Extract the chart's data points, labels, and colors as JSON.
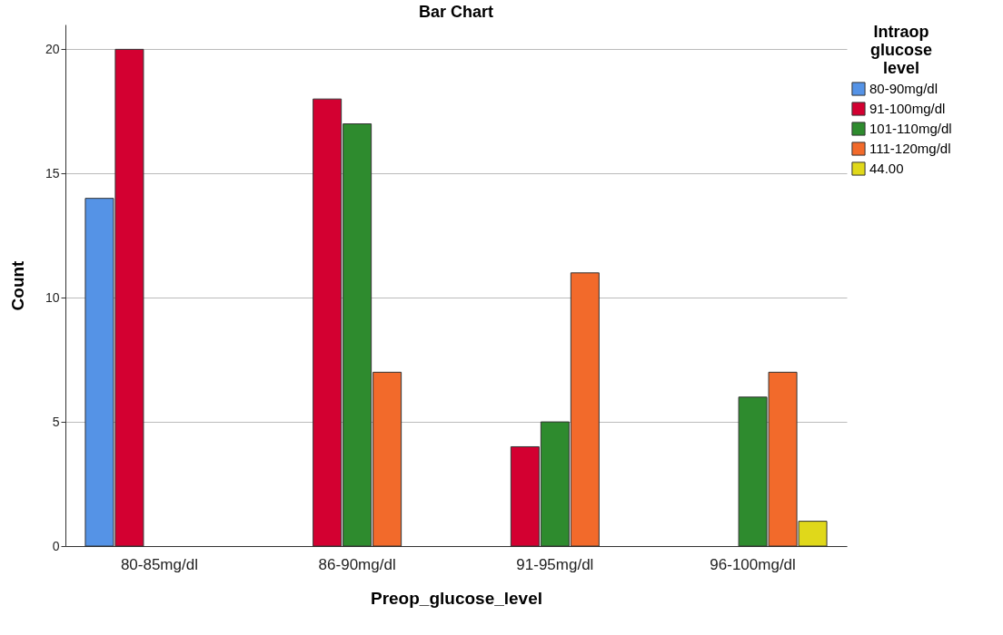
{
  "chart_data": {
    "type": "bar",
    "title": "Bar Chart",
    "xlabel": "Preop_glucose_level",
    "ylabel": "Count",
    "legend_title": "Intraop glucose level",
    "categories": [
      "80-85mg/dl",
      "86-90mg/dl",
      "91-95mg/dl",
      "96-100mg/dl"
    ],
    "series": [
      {
        "name": "80-90mg/dl",
        "color": "#5593e6",
        "values": [
          14,
          null,
          null,
          null
        ]
      },
      {
        "name": "91-100mg/dl",
        "color": "#d30031",
        "values": [
          20,
          18,
          4,
          null
        ]
      },
      {
        "name": "101-110mg/dl",
        "color": "#2e8b2e",
        "values": [
          null,
          17,
          5,
          6
        ]
      },
      {
        "name": "111-120mg/dl",
        "color": "#f26a2b",
        "values": [
          null,
          7,
          11,
          7
        ]
      },
      {
        "name": "44.00",
        "color": "#e0d81a",
        "values": [
          null,
          null,
          null,
          1
        ]
      }
    ],
    "ylim": [
      0,
      21
    ],
    "yticks": [
      0,
      5,
      10,
      15,
      20
    ],
    "grid": "y",
    "legend": "top right"
  }
}
